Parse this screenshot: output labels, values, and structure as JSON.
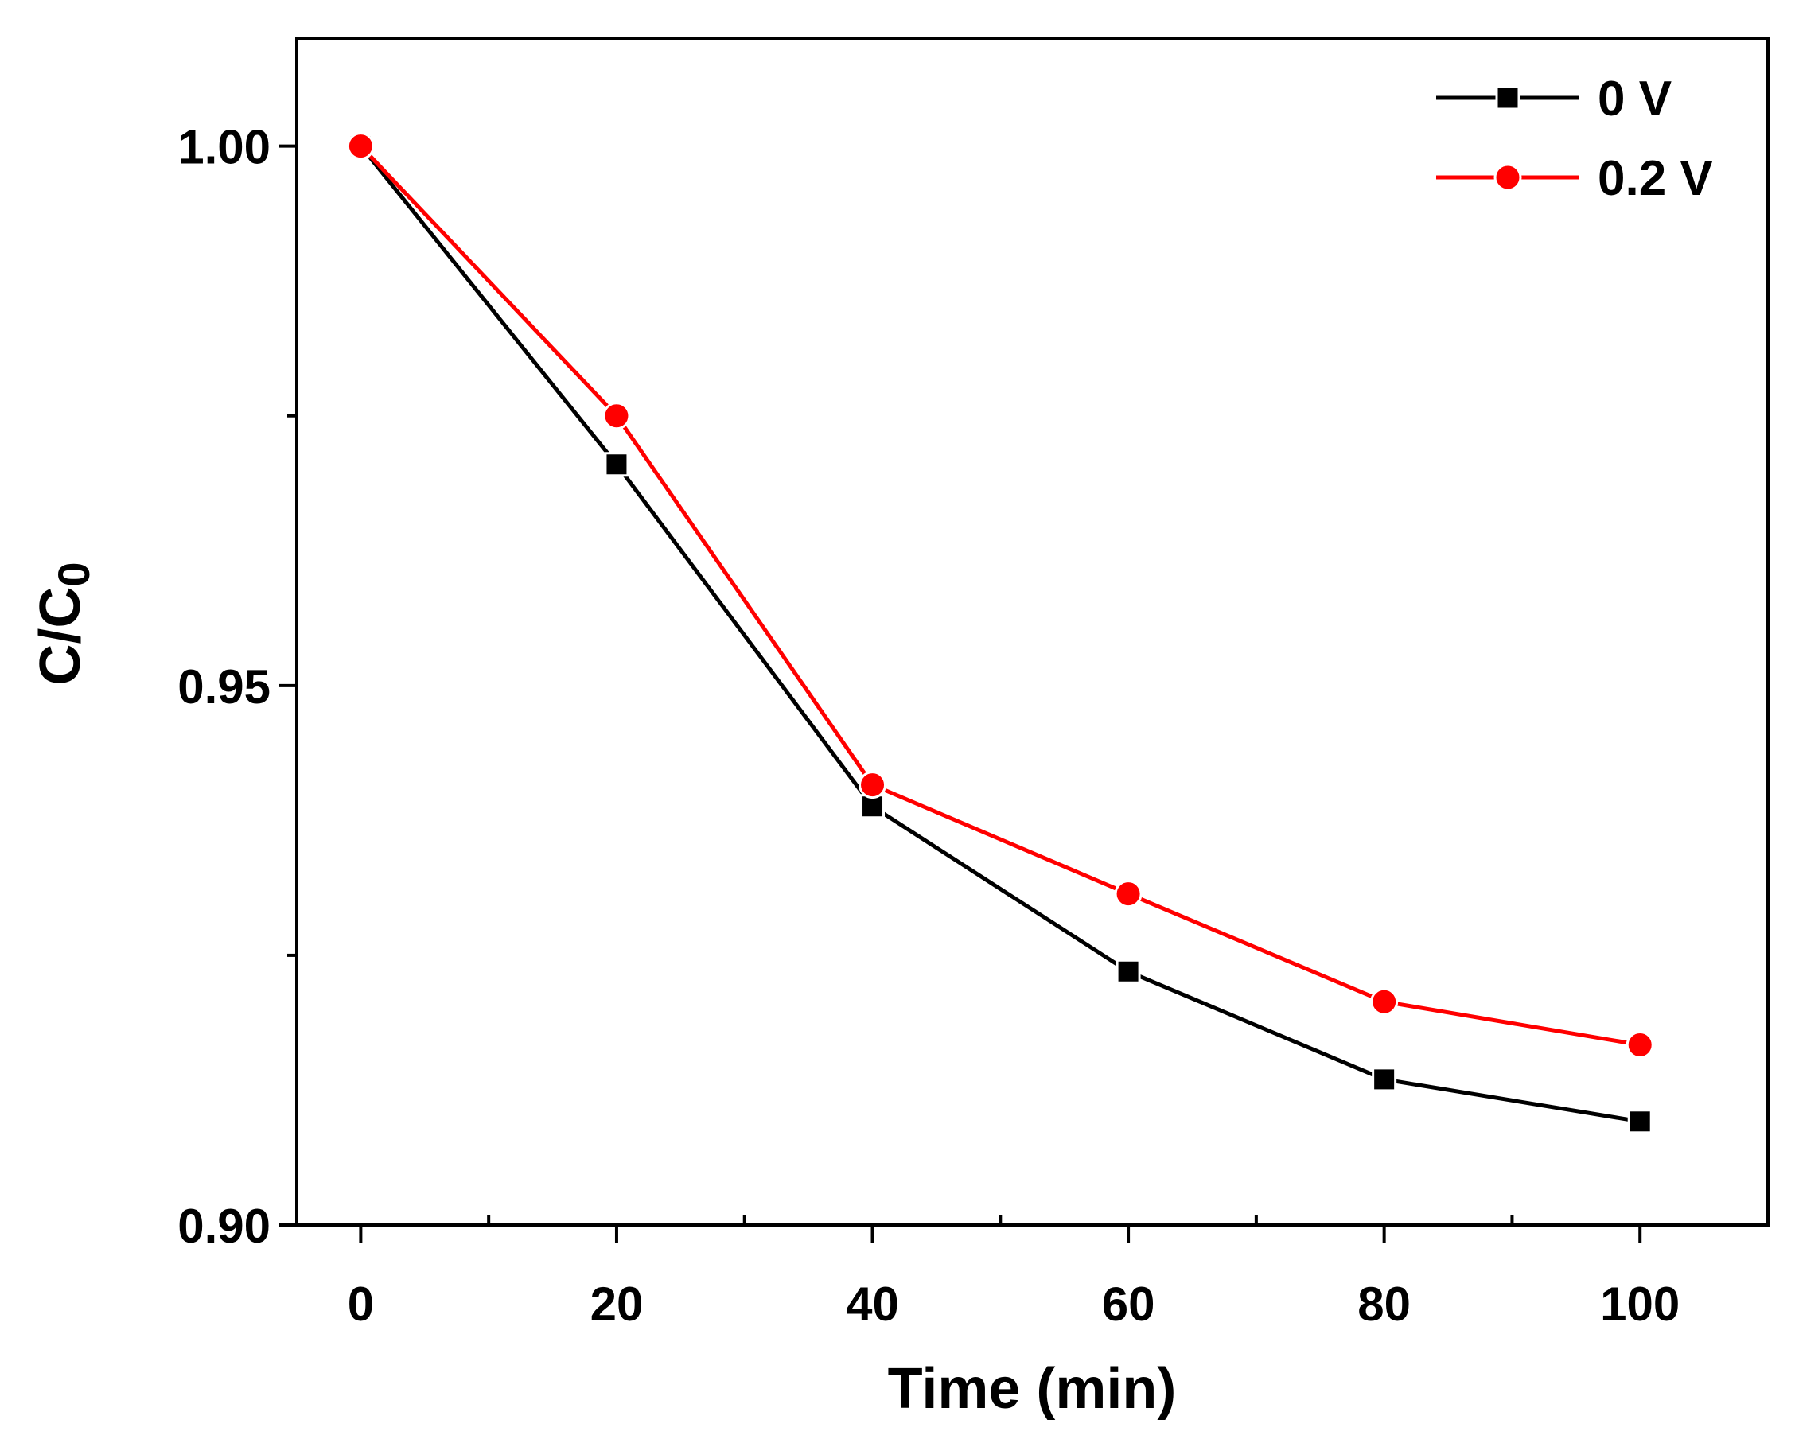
{
  "chart_data": {
    "type": "line",
    "title": "",
    "xlabel": "Time (min)",
    "ylabel_main": "C/C",
    "ylabel_sub": "0",
    "xlim": [
      -5,
      110
    ],
    "ylim": [
      0.9,
      1.01
    ],
    "x_ticks": [
      0,
      20,
      40,
      60,
      80,
      100
    ],
    "x_tick_labels": [
      "0",
      "20",
      "40",
      "60",
      "80",
      "100"
    ],
    "x_minor_ticks": [
      10,
      30,
      50,
      70,
      90
    ],
    "y_ticks": [
      0.9,
      0.95,
      1.0
    ],
    "y_tick_labels": [
      "0.90",
      "0.95",
      "1.00"
    ],
    "y_minor_ticks": [
      0.925,
      0.975
    ],
    "legend_position": "top-right",
    "x": [
      0,
      20,
      40,
      60,
      80,
      100
    ],
    "series": [
      {
        "name": "0 V",
        "marker": "square",
        "color": "#000000",
        "values": [
          1.0,
          0.9705,
          0.9388,
          0.9235,
          0.9135,
          0.9096
        ]
      },
      {
        "name": "0.2 V",
        "marker": "circle",
        "color": "#ff0000",
        "values": [
          1.0,
          0.975,
          0.9408,
          0.9307,
          0.9207,
          0.9167
        ]
      }
    ]
  }
}
